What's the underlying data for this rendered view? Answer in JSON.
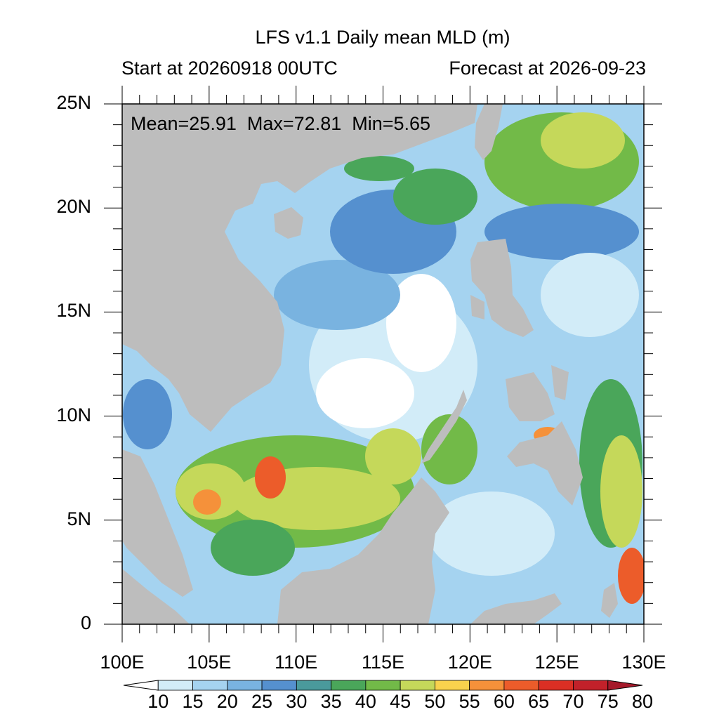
{
  "title": "LFS v1.1 Daily mean MLD (m)",
  "start_label": "Start at 20260918 00UTC",
  "forecast_label": "Forecast at 2026-09-23",
  "stats": {
    "mean": "Mean=25.91",
    "max": "Max=72.81",
    "min": "Min=5.65"
  },
  "lat_ticks": [
    "25N",
    "20N",
    "15N",
    "10N",
    "5N",
    "0"
  ],
  "lon_ticks": [
    "100E",
    "105E",
    "110E",
    "115E",
    "120E",
    "125E",
    "130E"
  ],
  "colorbar": {
    "levels": [
      "10",
      "15",
      "20",
      "25",
      "30",
      "35",
      "40",
      "45",
      "50",
      "55",
      "60",
      "65",
      "70",
      "75",
      "80"
    ],
    "colors": [
      "#ffffff",
      "#d2ecf8",
      "#a5d3f0",
      "#79b3e0",
      "#5590cf",
      "#4a9a9c",
      "#4aa65a",
      "#72ba48",
      "#c5d85a",
      "#f9d24d",
      "#f5913a",
      "#ec5c2a",
      "#db2f24",
      "#c2212a",
      "#a5192a"
    ]
  },
  "colors": {
    "land": "#bdbdbd",
    "ocean_base": "#a5d3f0"
  }
}
